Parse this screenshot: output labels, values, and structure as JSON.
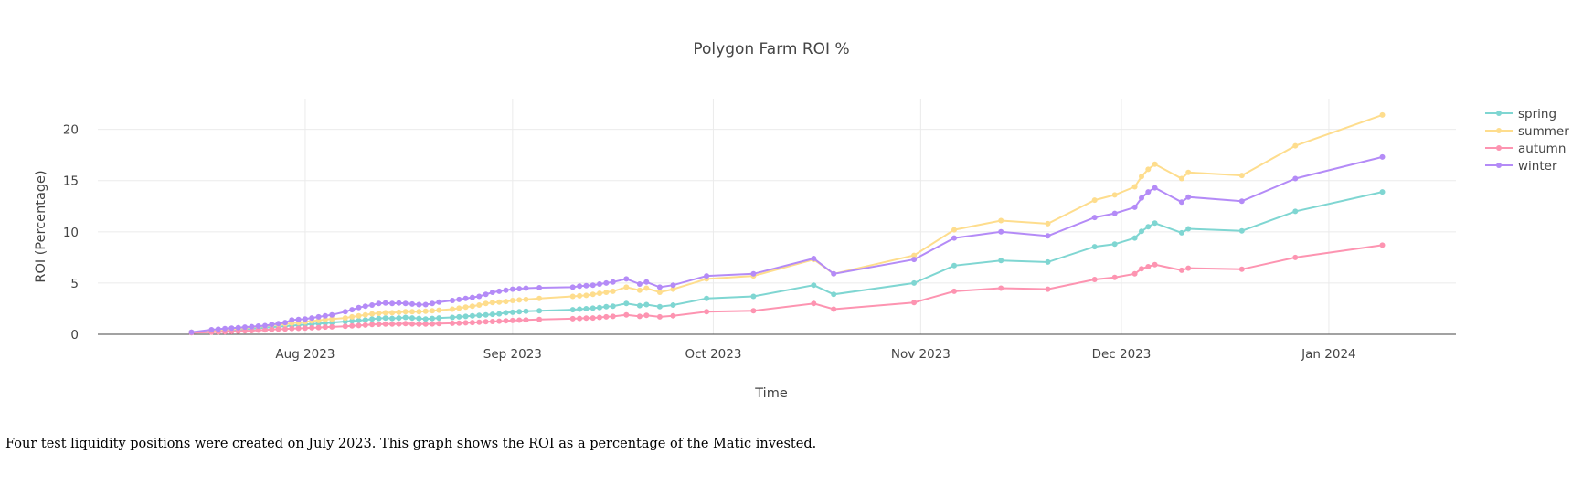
{
  "caption": "Four test liquidity positions were created on July 2023. This graph shows the ROI as a percentage of the Matic invested.",
  "chart_data": {
    "type": "line",
    "title": "Polygon Farm ROI %",
    "xlabel": "Time",
    "ylabel": "ROI (Percentage)",
    "x_tick_labels": [
      "Aug 2023",
      "Sep 2023",
      "Oct 2023",
      "Nov 2023",
      "Dec 2023",
      "Jan 2024"
    ],
    "x_tick_dates": [
      "2023-08-01",
      "2023-09-01",
      "2023-10-01",
      "2023-11-01",
      "2023-12-01",
      "2024-01-01"
    ],
    "y_ticks": [
      0,
      5,
      10,
      15,
      20
    ],
    "xlim": [
      "2023-07-01",
      "2024-01-20"
    ],
    "ylim": [
      0,
      23
    ],
    "grid": true,
    "legend_position": "top-right",
    "x": [
      "2023-07-15",
      "2023-07-18",
      "2023-07-19",
      "2023-07-20",
      "2023-07-21",
      "2023-07-22",
      "2023-07-23",
      "2023-07-24",
      "2023-07-25",
      "2023-07-26",
      "2023-07-27",
      "2023-07-28",
      "2023-07-29",
      "2023-07-30",
      "2023-07-31",
      "2023-08-01",
      "2023-08-02",
      "2023-08-03",
      "2023-08-04",
      "2023-08-05",
      "2023-08-07",
      "2023-08-08",
      "2023-08-09",
      "2023-08-10",
      "2023-08-11",
      "2023-08-12",
      "2023-08-13",
      "2023-08-14",
      "2023-08-15",
      "2023-08-16",
      "2023-08-17",
      "2023-08-18",
      "2023-08-19",
      "2023-08-20",
      "2023-08-21",
      "2023-08-23",
      "2023-08-24",
      "2023-08-25",
      "2023-08-26",
      "2023-08-27",
      "2023-08-28",
      "2023-08-29",
      "2023-08-30",
      "2023-08-31",
      "2023-09-01",
      "2023-09-02",
      "2023-09-03",
      "2023-09-05",
      "2023-09-10",
      "2023-09-11",
      "2023-09-12",
      "2023-09-13",
      "2023-09-14",
      "2023-09-15",
      "2023-09-16",
      "2023-09-18",
      "2023-09-20",
      "2023-09-21",
      "2023-09-23",
      "2023-09-25",
      "2023-09-30",
      "2023-10-07",
      "2023-10-16",
      "2023-10-19",
      "2023-10-31",
      "2023-11-06",
      "2023-11-13",
      "2023-11-20",
      "2023-11-27",
      "2023-11-30",
      "2023-12-03",
      "2023-12-04",
      "2023-12-05",
      "2023-12-06",
      "2023-12-10",
      "2023-12-11",
      "2023-12-19",
      "2023-12-27",
      "2024-01-09"
    ],
    "series": [
      {
        "name": "spring",
        "color": "#7fd6d2",
        "values": [
          0.2,
          0.3,
          0.3,
          0.35,
          0.4,
          0.45,
          0.5,
          0.55,
          0.6,
          0.65,
          0.7,
          0.75,
          0.8,
          0.85,
          0.9,
          0.95,
          1.0,
          1.05,
          1.1,
          1.15,
          1.25,
          1.3,
          1.35,
          1.4,
          1.5,
          1.55,
          1.6,
          1.55,
          1.6,
          1.65,
          1.6,
          1.55,
          1.5,
          1.55,
          1.6,
          1.65,
          1.7,
          1.75,
          1.8,
          1.85,
          1.9,
          1.95,
          2.0,
          2.1,
          2.15,
          2.2,
          2.25,
          2.3,
          2.4,
          2.45,
          2.5,
          2.55,
          2.6,
          2.7,
          2.75,
          3.0,
          2.8,
          2.9,
          2.7,
          2.85,
          3.5,
          3.7,
          4.8,
          3.9,
          5.0,
          6.7,
          7.2,
          7.05,
          8.55,
          8.8,
          9.4,
          10.05,
          10.5,
          10.85,
          9.9,
          10.3,
          10.1,
          12.0,
          13.9
        ]
      },
      {
        "name": "summer",
        "color": "#fedd8d",
        "values": [
          0.2,
          0.35,
          0.4,
          0.45,
          0.5,
          0.55,
          0.6,
          0.7,
          0.75,
          0.8,
          0.9,
          0.95,
          1.0,
          1.1,
          1.15,
          1.2,
          1.3,
          1.35,
          1.45,
          1.5,
          1.6,
          1.7,
          1.8,
          1.9,
          2.0,
          2.05,
          2.1,
          2.1,
          2.15,
          2.2,
          2.2,
          2.2,
          2.25,
          2.3,
          2.35,
          2.45,
          2.55,
          2.65,
          2.75,
          2.85,
          3.0,
          3.1,
          3.15,
          3.2,
          3.3,
          3.35,
          3.4,
          3.5,
          3.7,
          3.75,
          3.8,
          3.9,
          4.0,
          4.1,
          4.2,
          4.6,
          4.3,
          4.5,
          4.1,
          4.4,
          5.4,
          5.7,
          7.3,
          5.9,
          7.7,
          10.2,
          11.1,
          10.8,
          13.1,
          13.6,
          14.4,
          15.4,
          16.1,
          16.6,
          15.2,
          15.8,
          15.5,
          18.4,
          21.4
        ]
      },
      {
        "name": "autumn",
        "color": "#fd94b1",
        "values": [
          0.15,
          0.2,
          0.22,
          0.25,
          0.28,
          0.3,
          0.33,
          0.36,
          0.4,
          0.43,
          0.46,
          0.5,
          0.52,
          0.55,
          0.58,
          0.6,
          0.63,
          0.66,
          0.7,
          0.72,
          0.78,
          0.82,
          0.86,
          0.9,
          0.95,
          0.98,
          1.0,
          1.0,
          1.02,
          1.05,
          1.02,
          1.0,
          1.0,
          1.02,
          1.05,
          1.08,
          1.1,
          1.12,
          1.15,
          1.18,
          1.22,
          1.25,
          1.28,
          1.32,
          1.35,
          1.38,
          1.4,
          1.45,
          1.52,
          1.55,
          1.58,
          1.6,
          1.65,
          1.7,
          1.75,
          1.9,
          1.75,
          1.85,
          1.7,
          1.8,
          2.2,
          2.3,
          3.0,
          2.45,
          3.1,
          4.2,
          4.5,
          4.4,
          5.35,
          5.55,
          5.9,
          6.4,
          6.6,
          6.8,
          6.25,
          6.45,
          6.35,
          7.5,
          8.7
        ]
      },
      {
        "name": "winter",
        "color": "#b48bf7",
        "values": [
          0.2,
          0.45,
          0.5,
          0.55,
          0.6,
          0.65,
          0.7,
          0.75,
          0.8,
          0.85,
          0.95,
          1.05,
          1.15,
          1.4,
          1.45,
          1.5,
          1.6,
          1.7,
          1.8,
          1.9,
          2.2,
          2.4,
          2.6,
          2.75,
          2.85,
          3.0,
          3.05,
          3.0,
          3.05,
          3.0,
          2.95,
          2.9,
          2.9,
          3.0,
          3.15,
          3.3,
          3.4,
          3.5,
          3.6,
          3.7,
          3.9,
          4.1,
          4.2,
          4.3,
          4.4,
          4.45,
          4.5,
          4.55,
          4.6,
          4.7,
          4.75,
          4.8,
          4.9,
          5.0,
          5.1,
          5.4,
          4.9,
          5.1,
          4.6,
          4.8,
          5.7,
          5.9,
          7.4,
          5.9,
          7.3,
          9.4,
          10.0,
          9.6,
          11.4,
          11.8,
          12.4,
          13.3,
          13.9,
          14.3,
          12.9,
          13.4,
          13.0,
          15.2,
          17.3
        ]
      }
    ]
  }
}
